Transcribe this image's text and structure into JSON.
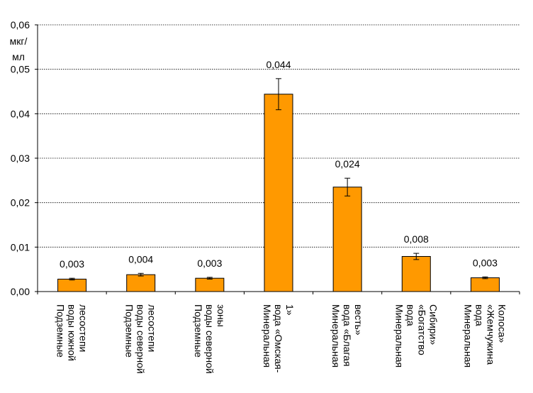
{
  "chart_data": {
    "type": "bar",
    "title": "",
    "xlabel": "",
    "ylabel_lines": [
      "мкг/",
      "мл"
    ],
    "ylim": [
      0,
      0.06
    ],
    "yticks": [
      "0,00",
      "0,01",
      "0,02",
      "0,03",
      "0,04",
      "0,05",
      "0,06"
    ],
    "ytick_values": [
      0,
      0.01,
      0.02,
      0.03,
      0.04,
      0.05,
      0.06
    ],
    "grid": "horizontal dotted",
    "bar_color": "#FF9900",
    "categories": [
      [
        "Подземные",
        "воды южной",
        "лесостепи"
      ],
      [
        "Подземные",
        "воды северной",
        "лесостепи"
      ],
      [
        "Подземные",
        "воды северной",
        "зоны"
      ],
      [
        "Минеральная",
        "вода «Омская-",
        "1»"
      ],
      [
        "Минеральная",
        "вода «Благая",
        "весть»"
      ],
      [
        "Минеральная",
        "вода",
        "«Богатство",
        "Сибири»"
      ],
      [
        "Минеральная",
        "вода",
        "«Жемчужина",
        "Колоса»"
      ]
    ],
    "values": [
      0.0028,
      0.0038,
      0.003,
      0.0444,
      0.0235,
      0.0079,
      0.0031
    ],
    "errors": [
      0.0002,
      0.0003,
      0.0002,
      0.0035,
      0.002,
      0.0007,
      0.0002
    ],
    "data_labels": [
      "0,003",
      "0,004",
      "0,003",
      "0,044",
      "0,024",
      "0,008",
      "0,003"
    ]
  }
}
